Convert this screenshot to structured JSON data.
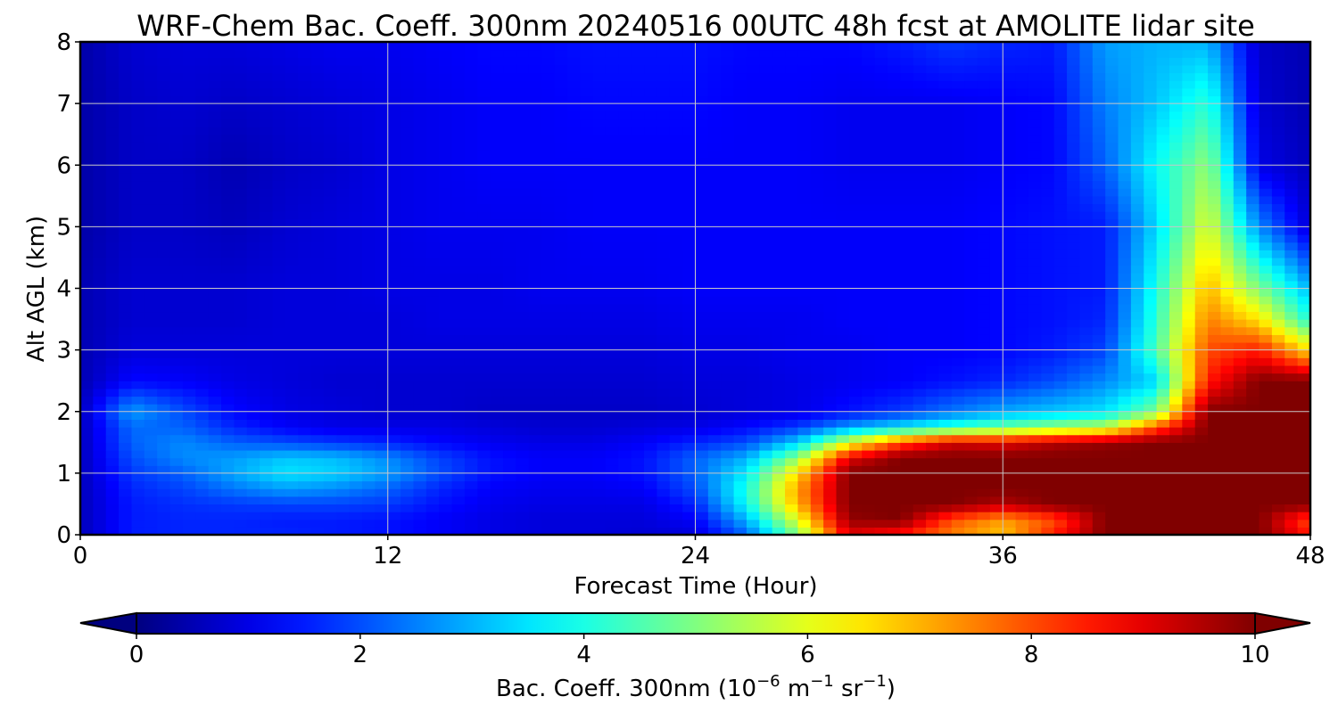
{
  "chart_data": {
    "type": "heatmap",
    "title": "WRF-Chem Bac. Coeff. 300nm  20240516 00UTC 48h fcst at AMOLITE lidar site",
    "xlabel": "Forecast Time (Hour)",
    "ylabel": "Alt AGL (km)",
    "xlim": [
      0,
      48
    ],
    "ylim": [
      0,
      8
    ],
    "xticks": [
      "0",
      "12",
      "24",
      "36",
      "48"
    ],
    "yticks": [
      "0",
      "1",
      "2",
      "3",
      "4",
      "5",
      "6",
      "7",
      "8"
    ],
    "grid": true,
    "colormap": "jet",
    "colorbar": {
      "label": "Bac. Coeff. 300nm  (10",
      "label_exp1": "−6",
      "label_mid": " m",
      "label_exp2": "−1",
      "label_mid2": " sr",
      "label_exp3": "−1",
      "label_end": ")",
      "range": [
        0,
        10
      ],
      "ticks": [
        "0",
        "2",
        "4",
        "6",
        "8",
        "10"
      ],
      "extend": "both",
      "orientation": "horizontal",
      "placement": "bottom"
    },
    "x": [
      0,
      2,
      4,
      6,
      8,
      10,
      12,
      14,
      16,
      18,
      20,
      22,
      24,
      26,
      28,
      30,
      32,
      34,
      36,
      38,
      40,
      42,
      44,
      46,
      48
    ],
    "y": [
      0,
      0.25,
      0.5,
      0.75,
      1.0,
      1.25,
      1.5,
      1.75,
      2.0,
      2.5,
      3.0,
      3.5,
      4.0,
      5.0,
      6.0,
      7.0,
      8.0
    ],
    "z": [
      [
        0.6,
        1.5,
        1.6,
        1.6,
        1.6,
        1.5,
        1.4,
        1.2,
        1.0,
        0.9,
        0.9,
        0.8,
        0.9,
        2.2,
        5.0,
        9.0,
        8.5,
        7.5,
        6.8,
        8.5,
        10,
        10,
        10,
        10,
        8.5
      ],
      [
        0.6,
        1.5,
        1.6,
        1.6,
        1.5,
        1.5,
        1.4,
        1.2,
        1.0,
        0.9,
        0.9,
        0.9,
        1.2,
        3.0,
        6.0,
        9.8,
        10,
        8.0,
        7.2,
        8.0,
        10,
        10,
        10,
        10,
        8.0
      ],
      [
        0.6,
        1.5,
        1.7,
        1.8,
        1.9,
        1.9,
        1.8,
        1.4,
        1.1,
        1.0,
        1.0,
        1.0,
        1.6,
        3.8,
        7.0,
        10,
        10,
        10,
        9.5,
        10,
        10,
        10,
        10,
        10,
        10
      ],
      [
        0.6,
        1.6,
        1.9,
        2.4,
        2.8,
        2.6,
        2.2,
        1.6,
        1.2,
        1.1,
        1.1,
        1.2,
        2.0,
        4.0,
        7.2,
        10,
        10,
        10,
        10,
        10,
        10,
        10,
        10,
        10,
        10
      ],
      [
        0.6,
        1.8,
        2.2,
        2.9,
        3.5,
        3.3,
        2.8,
        2.0,
        1.4,
        1.2,
        1.2,
        1.4,
        2.2,
        3.6,
        6.6,
        10,
        10,
        10,
        10,
        10,
        10,
        10,
        10,
        10,
        10
      ],
      [
        0.6,
        2.0,
        2.6,
        2.8,
        3.2,
        3.1,
        2.6,
        1.9,
        1.4,
        1.2,
        1.2,
        1.4,
        2.2,
        3.0,
        5.2,
        9.0,
        10,
        10,
        10,
        10,
        10,
        10,
        10,
        10,
        10
      ],
      [
        0.6,
        2.2,
        2.6,
        2.2,
        2.0,
        1.8,
        1.6,
        1.3,
        1.1,
        1.0,
        1.0,
        1.2,
        1.6,
        2.0,
        3.3,
        6.0,
        8.0,
        9.2,
        9.0,
        9.5,
        9.8,
        10,
        10,
        10,
        10
      ],
      [
        0.6,
        2.3,
        2.2,
        1.6,
        1.2,
        1.0,
        1.0,
        1.0,
        0.9,
        0.8,
        0.8,
        0.9,
        1.0,
        1.3,
        1.8,
        2.8,
        3.5,
        4.2,
        4.8,
        5.2,
        5.6,
        8.0,
        10,
        10,
        10
      ],
      [
        0.6,
        2.8,
        2.0,
        1.3,
        1.0,
        0.9,
        0.8,
        0.8,
        0.7,
        0.7,
        0.7,
        0.7,
        0.8,
        0.9,
        1.0,
        1.4,
        1.8,
        2.4,
        2.9,
        3.2,
        3.5,
        5.0,
        10,
        10,
        10
      ],
      [
        0.5,
        1.3,
        1.2,
        1.0,
        0.9,
        0.8,
        0.8,
        0.8,
        0.8,
        0.8,
        0.8,
        0.8,
        0.9,
        0.9,
        1.0,
        1.1,
        1.2,
        1.4,
        1.6,
        2.0,
        2.6,
        3.4,
        8.5,
        10,
        10
      ],
      [
        0.5,
        0.9,
        0.9,
        0.9,
        0.9,
        0.9,
        0.9,
        0.9,
        0.9,
        0.9,
        0.9,
        0.9,
        1.0,
        1.0,
        1.1,
        1.1,
        1.2,
        1.2,
        1.3,
        1.5,
        1.9,
        4.5,
        8.0,
        8.5,
        6.5
      ],
      [
        0.5,
        0.8,
        0.8,
        0.8,
        0.9,
        0.9,
        0.9,
        1.0,
        1.0,
        1.0,
        1.0,
        1.0,
        1.1,
        1.1,
        1.1,
        1.2,
        1.2,
        1.2,
        1.3,
        1.4,
        1.6,
        4.2,
        7.5,
        6.5,
        4.0
      ],
      [
        0.5,
        0.8,
        0.8,
        0.8,
        0.9,
        0.9,
        1.0,
        1.0,
        1.0,
        1.1,
        1.1,
        1.1,
        1.2,
        1.2,
        1.2,
        1.2,
        1.2,
        1.2,
        1.3,
        1.4,
        1.5,
        4.0,
        7.0,
        5.0,
        3.0
      ],
      [
        0.4,
        0.7,
        0.7,
        0.6,
        0.8,
        0.9,
        1.0,
        1.1,
        1.1,
        1.1,
        1.2,
        1.2,
        1.2,
        1.2,
        1.2,
        1.2,
        1.2,
        1.2,
        1.3,
        1.4,
        1.5,
        3.4,
        6.0,
        2.6,
        0.8
      ],
      [
        0.4,
        0.7,
        0.7,
        0.5,
        0.7,
        0.8,
        1.0,
        1.1,
        1.2,
        1.2,
        1.2,
        1.2,
        1.2,
        1.2,
        1.2,
        1.1,
        1.1,
        1.1,
        1.2,
        1.3,
        2.2,
        3.8,
        5.2,
        1.0,
        0.6
      ],
      [
        0.4,
        0.7,
        0.8,
        0.7,
        0.8,
        0.9,
        1.0,
        1.1,
        1.2,
        1.2,
        1.3,
        1.3,
        1.3,
        1.2,
        1.2,
        1.1,
        1.1,
        1.1,
        1.2,
        1.3,
        2.5,
        3.2,
        4.2,
        0.8,
        0.5
      ],
      [
        0.4,
        0.8,
        0.9,
        0.9,
        1.0,
        1.1,
        1.1,
        1.2,
        1.3,
        1.3,
        1.4,
        1.4,
        1.4,
        1.3,
        1.3,
        1.3,
        1.5,
        1.8,
        1.6,
        1.5,
        2.8,
        3.0,
        3.0,
        0.7,
        0.5
      ]
    ]
  }
}
